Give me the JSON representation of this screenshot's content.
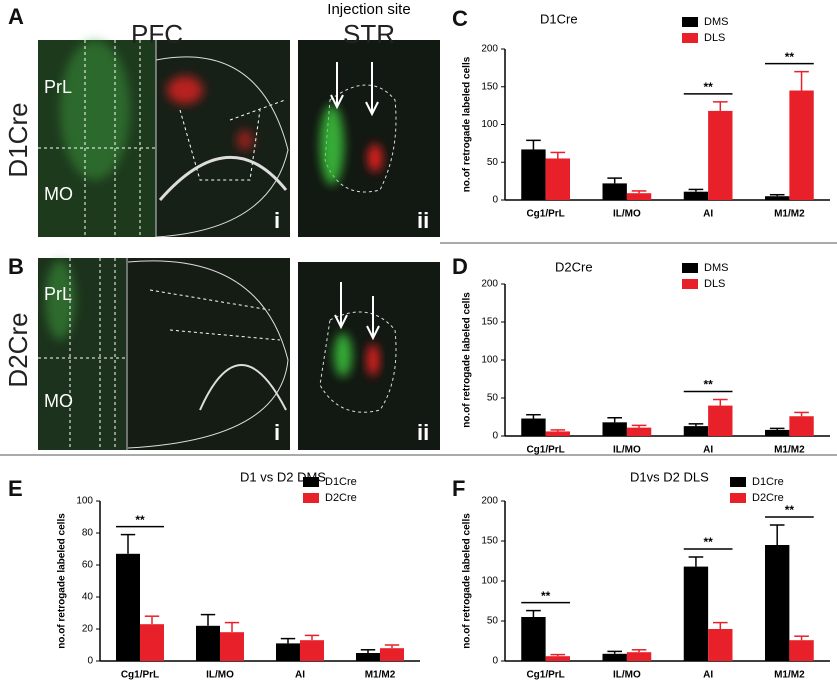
{
  "images": [
    {
      "letter": "A",
      "title_left": "PFC",
      "title_right_top": "Injection site",
      "title_right": "STR",
      "row_label": "D1Cre",
      "regions": [
        "PrL",
        "MO"
      ],
      "sublabels": [
        "i",
        "ii"
      ]
    },
    {
      "letter": "B",
      "row_label": "D2Cre",
      "regions": [
        "PrL",
        "MO"
      ],
      "sublabels": [
        "i",
        "ii"
      ]
    }
  ],
  "chart_data": [
    {
      "type": "bar",
      "label": "C",
      "title": "D1Cre",
      "y_label": "no.of retrogade labeled cells",
      "categories": [
        "Cg1/PrL",
        "IL/MO",
        "AI",
        "M1/M2"
      ],
      "ylim": [
        0,
        200
      ],
      "yticks": [
        0,
        50,
        100,
        150,
        200
      ],
      "series": [
        {
          "name": "DMS",
          "color": "#000000",
          "values": [
            67,
            22,
            11,
            5
          ],
          "errors": [
            12,
            7,
            3,
            2
          ]
        },
        {
          "name": "DLS",
          "color": "#e8202a",
          "values": [
            55,
            9,
            118,
            145
          ],
          "errors": [
            8,
            3,
            12,
            25
          ]
        }
      ],
      "significance": [
        null,
        null,
        "**",
        "**"
      ]
    },
    {
      "type": "bar",
      "label": "D",
      "title": "D2Cre",
      "y_label": "no.of retrogade labeled cells",
      "categories": [
        "Cg1/PrL",
        "IL/MO",
        "AI",
        "M1/M2"
      ],
      "ylim": [
        0,
        200
      ],
      "yticks": [
        0,
        50,
        100,
        150,
        200
      ],
      "series": [
        {
          "name": "DMS",
          "color": "#000000",
          "values": [
            23,
            18,
            13,
            8
          ],
          "errors": [
            5,
            6,
            3,
            2
          ]
        },
        {
          "name": "DLS",
          "color": "#e8202a",
          "values": [
            6,
            11,
            40,
            26
          ],
          "errors": [
            2,
            3,
            8,
            5
          ]
        }
      ],
      "significance": [
        null,
        null,
        "**",
        null
      ]
    },
    {
      "type": "bar",
      "label": "E",
      "title": "D1 vs D2 DMS",
      "y_label": "no.of retrogade labeled cells",
      "categories": [
        "Cg1/PrL",
        "IL/MO",
        "AI",
        "M1/M2"
      ],
      "ylim": [
        0,
        100
      ],
      "yticks": [
        0,
        20,
        40,
        60,
        80,
        100
      ],
      "series": [
        {
          "name": "D1Cre",
          "color": "#000000",
          "values": [
            67,
            22,
            11,
            5
          ],
          "errors": [
            12,
            7,
            3,
            2
          ]
        },
        {
          "name": "D2Cre",
          "color": "#e8202a",
          "values": [
            23,
            18,
            13,
            8
          ],
          "errors": [
            5,
            6,
            3,
            2
          ]
        }
      ],
      "significance": [
        "**",
        null,
        null,
        null
      ]
    },
    {
      "type": "bar",
      "label": "F",
      "title": "D1vs D2 DLS",
      "y_label": "no.of retrogade labeled cells",
      "categories": [
        "Cg1/PrL",
        "IL/MO",
        "AI",
        "M1/M2"
      ],
      "ylim": [
        0,
        200
      ],
      "yticks": [
        0,
        50,
        100,
        150,
        200
      ],
      "series": [
        {
          "name": "D1Cre",
          "color": "#000000",
          "values": [
            55,
            9,
            118,
            145
          ],
          "errors": [
            8,
            3,
            12,
            25
          ]
        },
        {
          "name": "D2Cre",
          "color": "#e8202a",
          "values": [
            6,
            11,
            40,
            26
          ],
          "errors": [
            2,
            3,
            8,
            5
          ]
        }
      ],
      "significance": [
        "**",
        null,
        "**",
        "**"
      ]
    }
  ]
}
